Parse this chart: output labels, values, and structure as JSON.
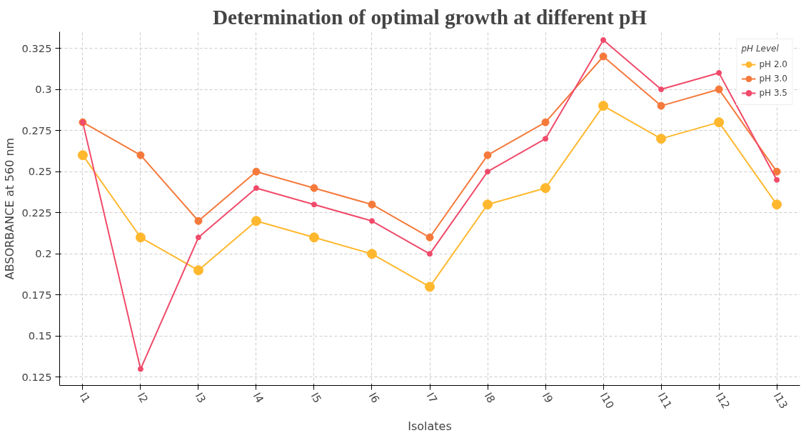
{
  "chart_data": {
    "type": "line",
    "title": "Determination of optimal growth at different pH",
    "xlabel": "Isolates",
    "ylabel": "ABSORBANCE at 560 nm",
    "legend_title": "pH Level",
    "categories": [
      "I1",
      "I2",
      "I3",
      "I4",
      "I5",
      "I6",
      "I7",
      "I8",
      "I9",
      "I10",
      "I11",
      "I12",
      "I13"
    ],
    "series": [
      {
        "name": "pH 2.0",
        "color": "#ffb82e",
        "values": [
          0.26,
          0.21,
          0.19,
          0.22,
          0.21,
          0.2,
          0.18,
          0.23,
          0.24,
          0.29,
          0.27,
          0.28,
          0.23
        ]
      },
      {
        "name": "pH 3.0",
        "color": "#f5793a",
        "values": [
          0.28,
          0.26,
          0.22,
          0.25,
          0.24,
          0.23,
          0.21,
          0.26,
          0.28,
          0.32,
          0.29,
          0.3,
          0.25
        ]
      },
      {
        "name": "pH 3.5",
        "color": "#f04a6a",
        "values": [
          0.28,
          0.13,
          0.21,
          0.24,
          0.23,
          0.22,
          0.2,
          0.25,
          0.27,
          0.33,
          0.3,
          0.31,
          0.245
        ]
      }
    ],
    "ylim": [
      0.12,
      0.335
    ],
    "yticks": [
      0.125,
      0.15,
      0.175,
      0.2,
      0.225,
      0.25,
      0.275,
      0.3,
      0.325
    ],
    "grid": true,
    "legend": "top right",
    "marker": "circle",
    "line_style": "solid"
  }
}
